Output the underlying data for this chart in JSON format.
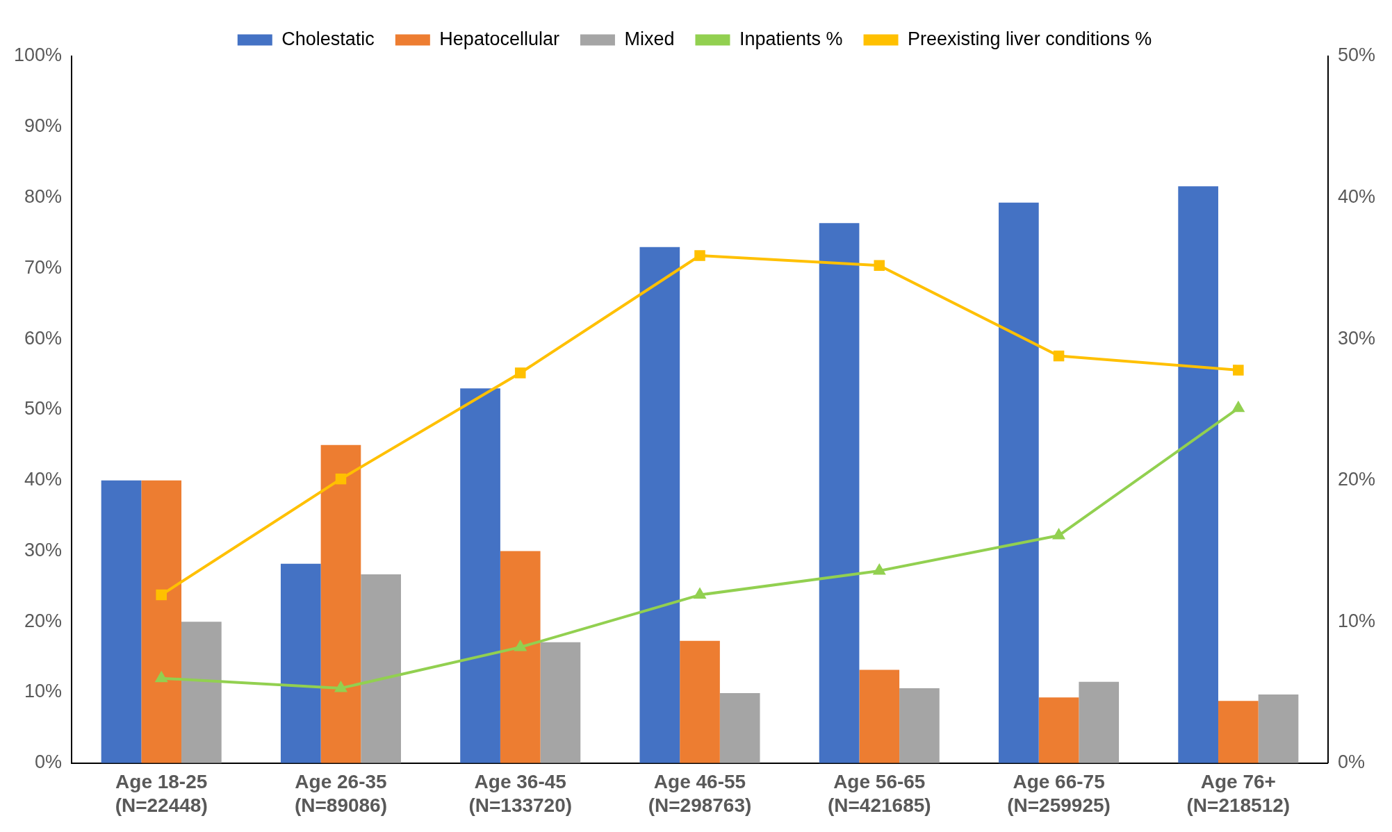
{
  "chart_data": {
    "type": "bar",
    "categories": [
      "Age 18-25\n(N=22448)",
      "Age 26-35\n(N=89086)",
      "Age 36-45\n(N=133720)",
      "Age 46-55\n(N=298763)",
      "Age 56-65\n(N=421685)",
      "Age 66-75\n(N=259925)",
      "Age 76+\n(N=218512)"
    ],
    "series": [
      {
        "name": "Cholestatic",
        "color": "#4472c4",
        "values": [
          40,
          28.2,
          53,
          73,
          76.4,
          79.3,
          81.6
        ]
      },
      {
        "name": "Hepatocellular",
        "color": "#ed7d31",
        "values": [
          40,
          45,
          30,
          17.3,
          13.2,
          9.3,
          8.8
        ]
      },
      {
        "name": "Mixed",
        "color": "#a5a5a5",
        "values": [
          20,
          26.7,
          17.1,
          9.9,
          10.6,
          11.5,
          9.7
        ]
      },
      {
        "name": "Inpatients %",
        "type": "line",
        "axis": "y2",
        "marker": "triangle",
        "color": "#92d050",
        "values": [
          6.0,
          5.3,
          8.2,
          11.9,
          13.6,
          16.1,
          25.1
        ]
      },
      {
        "name": "Preexisting liver conditions %",
        "type": "line",
        "axis": "y2",
        "marker": "square",
        "color": "#ffc000",
        "values": [
          11.9,
          20.1,
          27.6,
          35.9,
          35.2,
          28.8,
          27.8
        ]
      }
    ],
    "ylim": [
      0,
      100
    ],
    "yticks": [
      {
        "value": 0,
        "label": "0%"
      },
      {
        "value": 10,
        "label": "10%"
      },
      {
        "value": 20,
        "label": "20%"
      },
      {
        "value": 30,
        "label": "30%"
      },
      {
        "value": 40,
        "label": "40%"
      },
      {
        "value": 50,
        "label": "50%"
      },
      {
        "value": 60,
        "label": "60%"
      },
      {
        "value": 70,
        "label": "70%"
      },
      {
        "value": 80,
        "label": "80%"
      },
      {
        "value": 90,
        "label": "90%"
      },
      {
        "value": 100,
        "label": "100%"
      }
    ],
    "y2lim": [
      0,
      50
    ],
    "y2ticks": [
      {
        "value": 0,
        "label": "0%"
      },
      {
        "value": 10,
        "label": "10%"
      },
      {
        "value": 20,
        "label": "20%"
      },
      {
        "value": 30,
        "label": "30%"
      },
      {
        "value": 40,
        "label": "40%"
      },
      {
        "value": 50,
        "label": "50%"
      }
    ],
    "grid": false,
    "legend": "top"
  }
}
